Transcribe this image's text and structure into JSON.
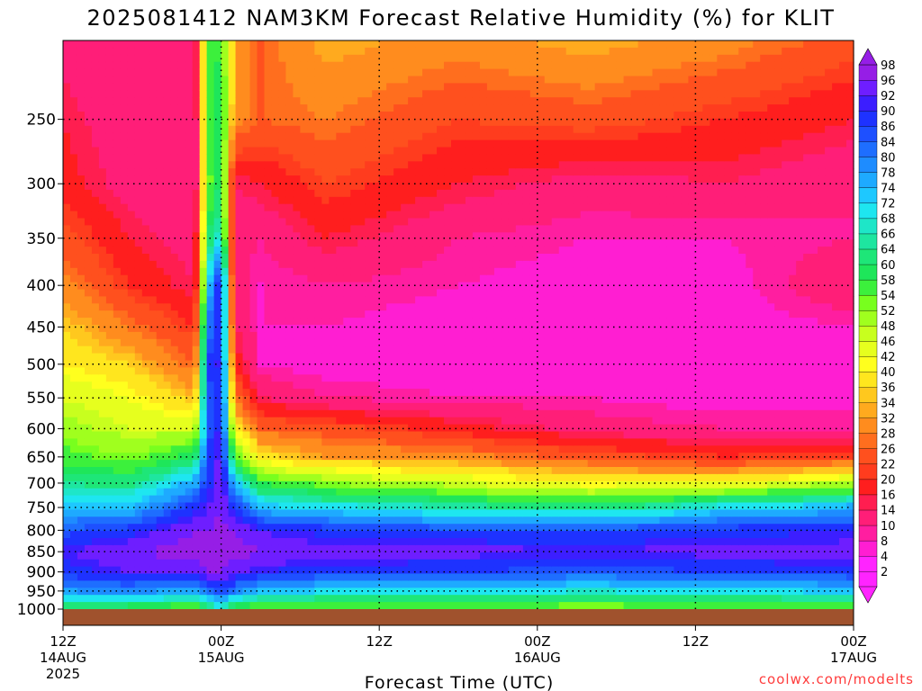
{
  "title": "2025081412 NAM3KM Forecast Relative Humidity (%) for KLIT",
  "credit": "coolwx.com/modelts",
  "chart_data": {
    "type": "heatmap",
    "title": "2025081412 NAM3KM Forecast Relative Humidity (%) for KLIT",
    "xlabel": "Forecast Time (UTC)",
    "ylabel": "",
    "y_scale": "log-pressure",
    "ylim": [
      1000,
      200
    ],
    "y_ticks": [
      250,
      300,
      350,
      400,
      450,
      500,
      550,
      600,
      650,
      700,
      750,
      800,
      850,
      900,
      950,
      1000
    ],
    "x_ticks": [
      {
        "hour": 0,
        "label": "12Z",
        "date": "14AUG",
        "year": "2025"
      },
      {
        "hour": 12,
        "label": "00Z",
        "date": "15AUG",
        "year": ""
      },
      {
        "hour": 24,
        "label": "12Z",
        "date": "",
        "year": ""
      },
      {
        "hour": 36,
        "label": "00Z",
        "date": "16AUG",
        "year": ""
      },
      {
        "hour": 48,
        "label": "12Z",
        "date": "",
        "year": ""
      },
      {
        "hour": 60,
        "label": "00Z",
        "date": "17AUG",
        "year": ""
      }
    ],
    "xlim": [
      0,
      60
    ],
    "grid": true,
    "colorbar_levels": [
      2,
      4,
      8,
      10,
      14,
      16,
      20,
      22,
      26,
      28,
      32,
      34,
      36,
      40,
      42,
      46,
      48,
      52,
      54,
      58,
      60,
      64,
      66,
      68,
      72,
      74,
      78,
      80,
      84,
      86,
      90,
      92,
      96,
      98
    ],
    "rh_profiles_note_hours": [
      0,
      5,
      10,
      11,
      12,
      13,
      15,
      20,
      30,
      40,
      50,
      60
    ],
    "rh_profile_levels": [
      1000,
      950,
      900,
      850,
      800,
      750,
      700,
      650,
      600,
      550,
      500,
      450,
      400,
      350,
      300,
      250,
      200
    ],
    "rh_profiles": [
      [
        60,
        78,
        88,
        92,
        84,
        74,
        64,
        56,
        50,
        46,
        40,
        36,
        30,
        24,
        18,
        16,
        12
      ],
      [
        55,
        80,
        92,
        96,
        88,
        74,
        62,
        52,
        46,
        42,
        36,
        28,
        20,
        16,
        12,
        10,
        10
      ],
      [
        52,
        76,
        94,
        98,
        96,
        88,
        76,
        60,
        46,
        34,
        26,
        20,
        14,
        12,
        10,
        10,
        12
      ],
      [
        58,
        82,
        96,
        98,
        96,
        92,
        88,
        86,
        84,
        84,
        86,
        80,
        72,
        60,
        52,
        54,
        56
      ],
      [
        66,
        88,
        96,
        98,
        98,
        96,
        96,
        94,
        92,
        90,
        92,
        90,
        94,
        70,
        62,
        62,
        58
      ],
      [
        56,
        80,
        94,
        98,
        96,
        88,
        74,
        56,
        40,
        28,
        20,
        14,
        12,
        12,
        14,
        30,
        32
      ],
      [
        52,
        74,
        90,
        96,
        92,
        74,
        58,
        38,
        26,
        14,
        8,
        8,
        8,
        10,
        16,
        26,
        26
      ],
      [
        52,
        72,
        88,
        94,
        88,
        70,
        52,
        32,
        24,
        10,
        6,
        8,
        10,
        16,
        22,
        28,
        34
      ],
      [
        52,
        70,
        86,
        94,
        86,
        66,
        46,
        30,
        18,
        8,
        6,
        6,
        8,
        10,
        16,
        22,
        30
      ],
      [
        50,
        68,
        84,
        92,
        86,
        62,
        40,
        24,
        12,
        8,
        6,
        6,
        6,
        8,
        12,
        24,
        34
      ],
      [
        52,
        70,
        86,
        94,
        88,
        70,
        42,
        20,
        10,
        6,
        6,
        6,
        6,
        8,
        14,
        20,
        30
      ],
      [
        54,
        74,
        88,
        94,
        90,
        76,
        48,
        22,
        10,
        6,
        6,
        8,
        14,
        10,
        10,
        16,
        24
      ]
    ],
    "colorbar_colors": [
      "#ff24ff",
      "#ff24ff",
      "#ff1ed2",
      "#ff1ea0",
      "#ff1e78",
      "#ff1e50",
      "#ff1e1e",
      "#ff3c1e",
      "#ff501e",
      "#ff6e1e",
      "#ff8c1e",
      "#ffaa1e",
      "#ffc81e",
      "#ffe61e",
      "#ffff1e",
      "#e6ff1e",
      "#c8ff1e",
      "#a0ff1e",
      "#78ff1e",
      "#3cf03c",
      "#1ee65a",
      "#1ee678",
      "#1ee6a0",
      "#1ee6c8",
      "#1ee6f0",
      "#1ec8ff",
      "#1eaaff",
      "#1e8cff",
      "#1e6eff",
      "#1e50ff",
      "#1e32ff",
      "#3c1eff",
      "#6e1eff",
      "#961ee6"
    ]
  }
}
